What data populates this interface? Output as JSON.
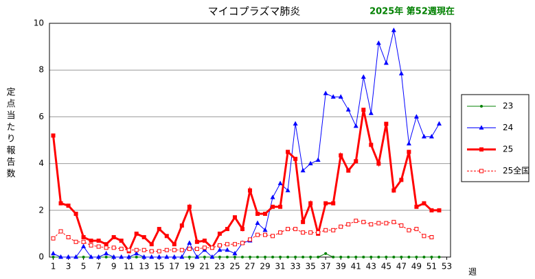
{
  "chart_data": {
    "type": "line",
    "title": "マイコプラズマ肺炎",
    "subtitle": "2025年 第52週現在",
    "y_label": "定点当たり報告数",
    "x_label": "週",
    "x": [
      1,
      2,
      3,
      4,
      5,
      6,
      7,
      8,
      9,
      10,
      11,
      12,
      13,
      14,
      15,
      16,
      17,
      18,
      19,
      20,
      21,
      22,
      23,
      24,
      25,
      26,
      27,
      28,
      29,
      30,
      31,
      32,
      33,
      34,
      35,
      36,
      37,
      38,
      39,
      40,
      41,
      42,
      43,
      44,
      45,
      46,
      47,
      48,
      49,
      50,
      51,
      52
    ],
    "xlim": [
      0.5,
      53.5
    ],
    "xticks": [
      1,
      3,
      5,
      7,
      9,
      11,
      13,
      15,
      17,
      19,
      21,
      23,
      25,
      27,
      29,
      31,
      33,
      35,
      37,
      39,
      41,
      43,
      45,
      47,
      49,
      51,
      53
    ],
    "ylim": [
      0,
      10
    ],
    "yticks": [
      0,
      2,
      4,
      6,
      8,
      10
    ],
    "grid": true,
    "legend": "right",
    "series": [
      {
        "name": "23",
        "color": "#008000",
        "marker": "circle",
        "values": [
          0,
          0,
          0,
          0,
          0,
          0,
          0,
          0,
          0,
          0,
          0,
          0,
          0,
          0,
          0,
          0,
          0,
          0,
          0,
          0,
          0,
          0,
          0,
          0,
          0,
          0,
          0,
          0,
          0,
          0,
          0,
          0,
          0,
          0,
          0,
          0,
          0.15,
          0,
          0,
          0,
          0,
          0,
          0,
          0,
          0,
          0,
          0,
          0,
          0,
          0,
          0,
          0
        ]
      },
      {
        "name": "24",
        "color": "#0000ff",
        "marker": "triangle",
        "values": [
          0.15,
          0,
          0,
          0,
          0.45,
          0,
          0,
          0.15,
          0,
          0,
          0,
          0.15,
          0,
          0,
          0,
          0,
          0,
          0,
          0.6,
          0,
          0.3,
          0,
          0.3,
          0.3,
          0.15,
          0.6,
          0.7,
          1.45,
          1.15,
          2.55,
          3.15,
          2.85,
          5.7,
          3.7,
          4.0,
          4.15,
          7.0,
          6.85,
          6.85,
          6.3,
          5.6,
          7.7,
          6.15,
          9.15,
          8.3,
          9.7,
          7.85,
          4.85,
          6.0,
          5.15,
          5.15,
          5.7
        ]
      },
      {
        "name": "25",
        "color": "#ff0000",
        "marker": "square",
        "width": 3,
        "values": [
          5.2,
          2.3,
          2.2,
          1.85,
          0.85,
          0.7,
          0.7,
          0.55,
          0.85,
          0.7,
          0.25,
          1.0,
          0.85,
          0.55,
          1.2,
          0.9,
          0.55,
          1.35,
          2.15,
          0.65,
          0.7,
          0.4,
          1.0,
          1.2,
          1.7,
          1.2,
          2.85,
          1.85,
          1.85,
          2.15,
          2.15,
          4.5,
          4.2,
          1.5,
          2.3,
          1.0,
          2.3,
          2.3,
          4.35,
          3.7,
          4.1,
          6.3,
          4.8,
          4.0,
          5.7,
          2.85,
          3.3,
          4.5,
          2.15,
          2.3,
          2.0,
          2.0
        ]
      },
      {
        "name": "25全国",
        "color": "#ff0000",
        "marker": "open-square",
        "dashed": true,
        "values": [
          0.8,
          1.1,
          0.85,
          0.65,
          0.65,
          0.5,
          0.45,
          0.4,
          0.4,
          0.35,
          0.3,
          0.3,
          0.3,
          0.25,
          0.25,
          0.3,
          0.3,
          0.3,
          0.35,
          0.35,
          0.4,
          0.4,
          0.5,
          0.55,
          0.55,
          0.6,
          0.75,
          0.95,
          0.95,
          0.9,
          1.05,
          1.2,
          1.2,
          1.05,
          1.05,
          1.05,
          1.15,
          1.15,
          1.3,
          1.4,
          1.55,
          1.5,
          1.4,
          1.45,
          1.45,
          1.5,
          1.35,
          1.15,
          1.2,
          0.9,
          0.85,
          null
        ]
      }
    ]
  }
}
